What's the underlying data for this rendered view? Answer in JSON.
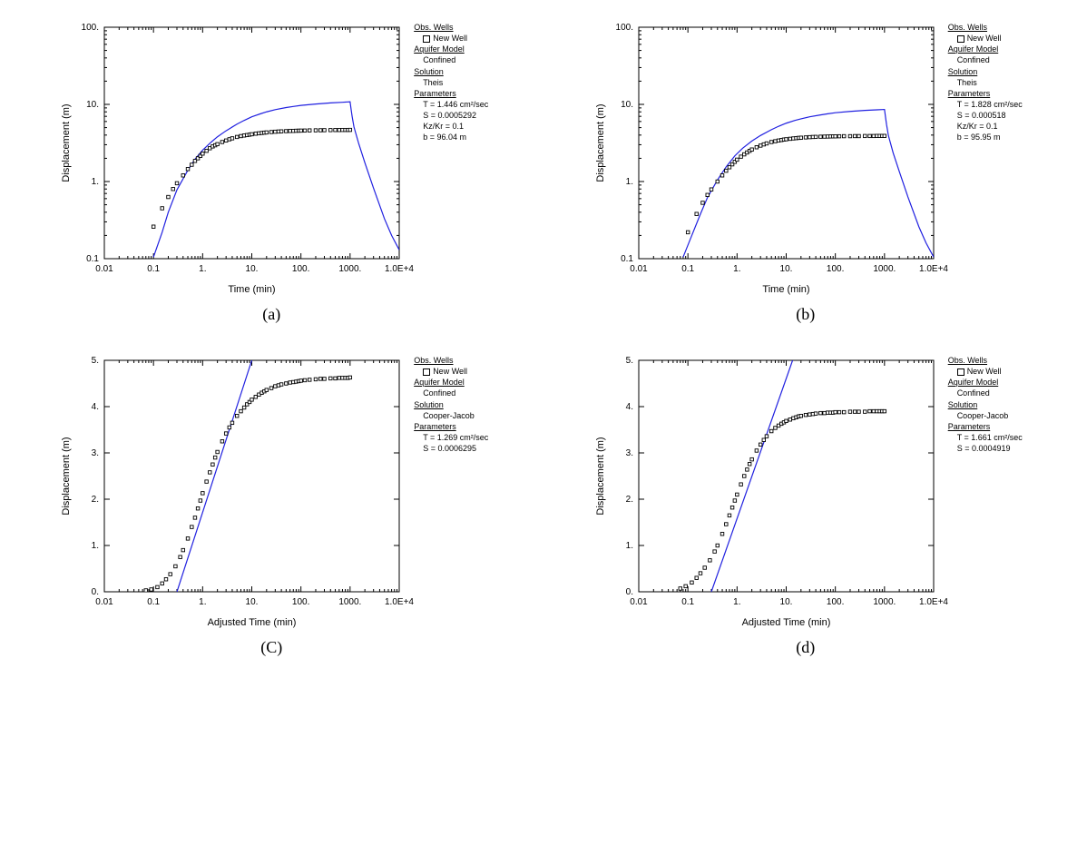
{
  "colors": {
    "line": "#2020e0",
    "marker_stroke": "#000000",
    "marker_fill": "#ffffff",
    "axis": "#000000",
    "bg": "#ffffff"
  },
  "marker_size": 3.5,
  "panels": [
    {
      "caption": "(a)",
      "xlabel": "Time (min)",
      "ylabel": "Displacement (m)",
      "xscale": "log",
      "yscale": "log",
      "xlim": [
        0.01,
        10000
      ],
      "ylim": [
        0.1,
        100
      ],
      "xticks": [
        0.01,
        0.1,
        1,
        10,
        100,
        1000,
        10000
      ],
      "xtick_labels": [
        "0.01",
        "0.1",
        "1.",
        "10.",
        "100.",
        "1000.",
        "1.0E+4"
      ],
      "yticks": [
        0.1,
        1,
        10,
        100
      ],
      "ytick_labels": [
        "0.1",
        "1.",
        "10.",
        "100."
      ],
      "legend": {
        "obs_heading": "Obs. Wells",
        "obs_name": "New Well",
        "aquifer_heading": "Aquifer Model",
        "aquifer_value": "Confined",
        "solution_heading": "Solution",
        "solution_value": "Theis",
        "params_heading": "Parameters",
        "params": [
          "T  = 1.446 cm²/sec",
          "S  = 0.0005292",
          "Kz/Kr = 0.1",
          "b  = 96.04 m"
        ]
      },
      "curve": [
        [
          0.1,
          0.105
        ],
        [
          0.15,
          0.22
        ],
        [
          0.2,
          0.4
        ],
        [
          0.3,
          0.78
        ],
        [
          0.5,
          1.4
        ],
        [
          0.7,
          1.95
        ],
        [
          1,
          2.55
        ],
        [
          1.5,
          3.25
        ],
        [
          2,
          3.8
        ],
        [
          3,
          4.55
        ],
        [
          5,
          5.55
        ],
        [
          7,
          6.2
        ],
        [
          10,
          6.9
        ],
        [
          15,
          7.55
        ],
        [
          20,
          8.0
        ],
        [
          30,
          8.55
        ],
        [
          50,
          9.1
        ],
        [
          70,
          9.4
        ],
        [
          100,
          9.7
        ],
        [
          200,
          10.1
        ],
        [
          400,
          10.45
        ],
        [
          700,
          10.65
        ],
        [
          1000,
          10.8
        ],
        [
          1000,
          10.8
        ],
        [
          1050,
          8.6
        ],
        [
          1100,
          7.0
        ],
        [
          1200,
          5.1
        ],
        [
          1500,
          3.1
        ],
        [
          2000,
          1.75
        ],
        [
          3000,
          0.82
        ],
        [
          5000,
          0.33
        ],
        [
          7000,
          0.2
        ],
        [
          10000,
          0.13
        ]
      ],
      "data": [
        [
          0.1,
          0.26
        ],
        [
          0.15,
          0.45
        ],
        [
          0.2,
          0.63
        ],
        [
          0.25,
          0.8
        ],
        [
          0.3,
          0.95
        ],
        [
          0.4,
          1.2
        ],
        [
          0.5,
          1.45
        ],
        [
          0.6,
          1.65
        ],
        [
          0.7,
          1.85
        ],
        [
          0.8,
          2.0
        ],
        [
          0.9,
          2.15
        ],
        [
          1,
          2.3
        ],
        [
          1.2,
          2.5
        ],
        [
          1.4,
          2.7
        ],
        [
          1.6,
          2.85
        ],
        [
          1.8,
          2.95
        ],
        [
          2,
          3.05
        ],
        [
          2.5,
          3.25
        ],
        [
          3,
          3.4
        ],
        [
          3.5,
          3.53
        ],
        [
          4,
          3.63
        ],
        [
          5,
          3.78
        ],
        [
          6,
          3.88
        ],
        [
          7,
          3.95
        ],
        [
          8,
          4.0
        ],
        [
          9,
          4.05
        ],
        [
          10,
          4.1
        ],
        [
          12,
          4.17
        ],
        [
          14,
          4.22
        ],
        [
          16,
          4.26
        ],
        [
          18,
          4.3
        ],
        [
          20,
          4.33
        ],
        [
          25,
          4.38
        ],
        [
          30,
          4.42
        ],
        [
          35,
          4.45
        ],
        [
          40,
          4.47
        ],
        [
          50,
          4.5
        ],
        [
          60,
          4.52
        ],
        [
          70,
          4.53
        ],
        [
          80,
          4.55
        ],
        [
          90,
          4.56
        ],
        [
          100,
          4.57
        ],
        [
          120,
          4.58
        ],
        [
          150,
          4.6
        ],
        [
          200,
          4.61
        ],
        [
          250,
          4.62
        ],
        [
          300,
          4.63
        ],
        [
          400,
          4.64
        ],
        [
          500,
          4.65
        ],
        [
          600,
          4.65
        ],
        [
          700,
          4.66
        ],
        [
          800,
          4.66
        ],
        [
          900,
          4.66
        ],
        [
          1000,
          4.67
        ]
      ]
    },
    {
      "caption": "(b)",
      "xlabel": "Time (min)",
      "ylabel": "Displacement (m)",
      "xscale": "log",
      "yscale": "log",
      "xlim": [
        0.01,
        10000
      ],
      "ylim": [
        0.1,
        100
      ],
      "xticks": [
        0.01,
        0.1,
        1,
        10,
        100,
        1000,
        10000
      ],
      "xtick_labels": [
        "0.01",
        "0.1",
        "1.",
        "10.",
        "100.",
        "1000.",
        "1.0E+4"
      ],
      "yticks": [
        0.1,
        1,
        10,
        100
      ],
      "ytick_labels": [
        "0.1",
        "1.",
        "10.",
        "100."
      ],
      "legend": {
        "obs_heading": "Obs. Wells",
        "obs_name": "New Well",
        "aquifer_heading": "Aquifer Model",
        "aquifer_value": "Confined",
        "solution_heading": "Solution",
        "solution_value": "Theis",
        "params_heading": "Parameters",
        "params": [
          "T  = 1.828 cm²/sec",
          "S  = 0.000518",
          "Kz/Kr = 0.1",
          "b  = 95.95 m"
        ]
      },
      "curve": [
        [
          0.08,
          0.105
        ],
        [
          0.12,
          0.2
        ],
        [
          0.18,
          0.38
        ],
        [
          0.25,
          0.62
        ],
        [
          0.4,
          1.05
        ],
        [
          0.6,
          1.55
        ],
        [
          0.9,
          2.15
        ],
        [
          1.3,
          2.7
        ],
        [
          2,
          3.35
        ],
        [
          3,
          3.95
        ],
        [
          5,
          4.7
        ],
        [
          7,
          5.2
        ],
        [
          10,
          5.7
        ],
        [
          15,
          6.2
        ],
        [
          20,
          6.5
        ],
        [
          30,
          6.9
        ],
        [
          50,
          7.3
        ],
        [
          70,
          7.55
        ],
        [
          100,
          7.8
        ],
        [
          200,
          8.1
        ],
        [
          400,
          8.35
        ],
        [
          700,
          8.5
        ],
        [
          1000,
          8.6
        ],
        [
          1000,
          8.6
        ],
        [
          1050,
          6.8
        ],
        [
          1100,
          5.5
        ],
        [
          1200,
          3.95
        ],
        [
          1500,
          2.35
        ],
        [
          2000,
          1.35
        ],
        [
          3000,
          0.63
        ],
        [
          5000,
          0.26
        ],
        [
          7000,
          0.16
        ],
        [
          10000,
          0.105
        ]
      ],
      "data": [
        [
          0.1,
          0.22
        ],
        [
          0.15,
          0.38
        ],
        [
          0.2,
          0.53
        ],
        [
          0.25,
          0.67
        ],
        [
          0.3,
          0.79
        ],
        [
          0.4,
          1.0
        ],
        [
          0.5,
          1.2
        ],
        [
          0.6,
          1.38
        ],
        [
          0.7,
          1.53
        ],
        [
          0.8,
          1.67
        ],
        [
          0.9,
          1.8
        ],
        [
          1,
          1.92
        ],
        [
          1.2,
          2.1
        ],
        [
          1.4,
          2.25
        ],
        [
          1.6,
          2.38
        ],
        [
          1.8,
          2.5
        ],
        [
          2,
          2.6
        ],
        [
          2.5,
          2.78
        ],
        [
          3,
          2.92
        ],
        [
          3.5,
          3.03
        ],
        [
          4,
          3.12
        ],
        [
          5,
          3.25
        ],
        [
          6,
          3.33
        ],
        [
          7,
          3.4
        ],
        [
          8,
          3.45
        ],
        [
          9,
          3.5
        ],
        [
          10,
          3.53
        ],
        [
          12,
          3.58
        ],
        [
          14,
          3.62
        ],
        [
          16,
          3.65
        ],
        [
          18,
          3.68
        ],
        [
          20,
          3.7
        ],
        [
          25,
          3.73
        ],
        [
          30,
          3.76
        ],
        [
          35,
          3.78
        ],
        [
          40,
          3.79
        ],
        [
          50,
          3.81
        ],
        [
          60,
          3.82
        ],
        [
          70,
          3.83
        ],
        [
          80,
          3.84
        ],
        [
          90,
          3.85
        ],
        [
          100,
          3.85
        ],
        [
          120,
          3.86
        ],
        [
          150,
          3.87
        ],
        [
          200,
          3.87
        ],
        [
          250,
          3.88
        ],
        [
          300,
          3.88
        ],
        [
          400,
          3.89
        ],
        [
          500,
          3.89
        ],
        [
          600,
          3.89
        ],
        [
          700,
          3.9
        ],
        [
          800,
          3.9
        ],
        [
          900,
          3.9
        ],
        [
          1000,
          3.9
        ]
      ]
    },
    {
      "caption": "(C)",
      "xlabel": "Adjusted Time (min)",
      "ylabel": "Displacement (m)",
      "xscale": "log",
      "yscale": "linear",
      "xlim": [
        0.01,
        10000
      ],
      "ylim": [
        0,
        5
      ],
      "xticks": [
        0.01,
        0.1,
        1,
        10,
        100,
        1000,
        10000
      ],
      "xtick_labels": [
        "0.01",
        "0.1",
        "1.",
        "10.",
        "100.",
        "1000.",
        "1.0E+4"
      ],
      "yticks": [
        0,
        1,
        2,
        3,
        4,
        5
      ],
      "ytick_labels": [
        "0.",
        "1.",
        "2.",
        "3.",
        "4.",
        "5."
      ],
      "legend": {
        "obs_heading": "Obs. Wells",
        "obs_name": "New Well",
        "aquifer_heading": "Aquifer Model",
        "aquifer_value": "Confined",
        "solution_heading": "Solution",
        "solution_value": "Cooper-Jacob",
        "params_heading": "Parameters",
        "params": [
          "T  = 1.269 cm²/sec",
          "S  = 0.0006295"
        ]
      },
      "curve": [
        [
          0.3,
          0
        ],
        [
          10,
          5
        ]
      ],
      "data": [
        [
          0.07,
          0.03
        ],
        [
          0.09,
          0.05
        ],
        [
          0.12,
          0.1
        ],
        [
          0.15,
          0.18
        ],
        [
          0.18,
          0.27
        ],
        [
          0.22,
          0.38
        ],
        [
          0.28,
          0.55
        ],
        [
          0.35,
          0.75
        ],
        [
          0.4,
          0.9
        ],
        [
          0.5,
          1.15
        ],
        [
          0.6,
          1.4
        ],
        [
          0.7,
          1.6
        ],
        [
          0.8,
          1.8
        ],
        [
          0.9,
          1.97
        ],
        [
          1,
          2.13
        ],
        [
          1.2,
          2.38
        ],
        [
          1.4,
          2.58
        ],
        [
          1.6,
          2.75
        ],
        [
          1.8,
          2.9
        ],
        [
          2,
          3.02
        ],
        [
          2.5,
          3.25
        ],
        [
          3,
          3.42
        ],
        [
          3.5,
          3.55
        ],
        [
          4,
          3.65
        ],
        [
          5,
          3.8
        ],
        [
          6,
          3.9
        ],
        [
          7,
          3.98
        ],
        [
          8,
          4.05
        ],
        [
          9,
          4.1
        ],
        [
          10,
          4.15
        ],
        [
          12,
          4.21
        ],
        [
          14,
          4.26
        ],
        [
          16,
          4.3
        ],
        [
          18,
          4.33
        ],
        [
          20,
          4.36
        ],
        [
          25,
          4.4
        ],
        [
          30,
          4.44
        ],
        [
          35,
          4.46
        ],
        [
          40,
          4.48
        ],
        [
          50,
          4.5
        ],
        [
          60,
          4.52
        ],
        [
          70,
          4.53
        ],
        [
          80,
          4.54
        ],
        [
          90,
          4.55
        ],
        [
          100,
          4.56
        ],
        [
          120,
          4.57
        ],
        [
          150,
          4.58
        ],
        [
          200,
          4.59
        ],
        [
          250,
          4.6
        ],
        [
          300,
          4.6
        ],
        [
          400,
          4.61
        ],
        [
          500,
          4.61
        ],
        [
          600,
          4.62
        ],
        [
          700,
          4.62
        ],
        [
          800,
          4.62
        ],
        [
          900,
          4.62
        ],
        [
          1000,
          4.63
        ]
      ]
    },
    {
      "caption": "(d)",
      "xlabel": "Adjusted Time (min)",
      "ylabel": "Displacement (m)",
      "xscale": "log",
      "yscale": "linear",
      "xlim": [
        0.01,
        10000
      ],
      "ylim": [
        0,
        5
      ],
      "xticks": [
        0.01,
        0.1,
        1,
        10,
        100,
        1000,
        10000
      ],
      "xtick_labels": [
        "0.01",
        "0.1",
        "1.",
        "10.",
        "100.",
        "1000.",
        "1.0E+4"
      ],
      "yticks": [
        0,
        1,
        2,
        3,
        4,
        5
      ],
      "ytick_labels": [
        "0.",
        "1.",
        "2.",
        "3.",
        "4.",
        "5."
      ],
      "legend": {
        "obs_heading": "Obs. Wells",
        "obs_name": "New Well",
        "aquifer_heading": "Aquifer Model",
        "aquifer_value": "Confined",
        "solution_heading": "Solution",
        "solution_value": "Cooper-Jacob",
        "params_heading": "Parameters",
        "params": [
          "T  = 1.661 cm²/sec",
          "S  = 0.0004919"
        ]
      },
      "curve": [
        [
          0.3,
          0
        ],
        [
          13.5,
          5
        ]
      ],
      "data": [
        [
          0.07,
          0.07
        ],
        [
          0.09,
          0.12
        ],
        [
          0.12,
          0.2
        ],
        [
          0.15,
          0.3
        ],
        [
          0.18,
          0.4
        ],
        [
          0.22,
          0.52
        ],
        [
          0.28,
          0.68
        ],
        [
          0.35,
          0.87
        ],
        [
          0.4,
          1.0
        ],
        [
          0.5,
          1.25
        ],
        [
          0.6,
          1.46
        ],
        [
          0.7,
          1.65
        ],
        [
          0.8,
          1.82
        ],
        [
          0.9,
          1.97
        ],
        [
          1,
          2.1
        ],
        [
          1.2,
          2.32
        ],
        [
          1.4,
          2.5
        ],
        [
          1.6,
          2.64
        ],
        [
          1.8,
          2.76
        ],
        [
          2,
          2.86
        ],
        [
          2.5,
          3.05
        ],
        [
          3,
          3.18
        ],
        [
          3.5,
          3.28
        ],
        [
          4,
          3.36
        ],
        [
          5,
          3.47
        ],
        [
          6,
          3.54
        ],
        [
          7,
          3.59
        ],
        [
          8,
          3.63
        ],
        [
          9,
          3.66
        ],
        [
          10,
          3.69
        ],
        [
          12,
          3.72
        ],
        [
          14,
          3.75
        ],
        [
          16,
          3.77
        ],
        [
          18,
          3.79
        ],
        [
          20,
          3.8
        ],
        [
          25,
          3.82
        ],
        [
          30,
          3.83
        ],
        [
          35,
          3.84
        ],
        [
          40,
          3.85
        ],
        [
          50,
          3.86
        ],
        [
          60,
          3.86
        ],
        [
          70,
          3.87
        ],
        [
          80,
          3.87
        ],
        [
          90,
          3.87
        ],
        [
          100,
          3.88
        ],
        [
          120,
          3.88
        ],
        [
          150,
          3.88
        ],
        [
          200,
          3.89
        ],
        [
          250,
          3.89
        ],
        [
          300,
          3.89
        ],
        [
          400,
          3.89
        ],
        [
          500,
          3.9
        ],
        [
          600,
          3.9
        ],
        [
          700,
          3.9
        ],
        [
          800,
          3.9
        ],
        [
          900,
          3.9
        ],
        [
          1000,
          3.9
        ]
      ]
    }
  ]
}
